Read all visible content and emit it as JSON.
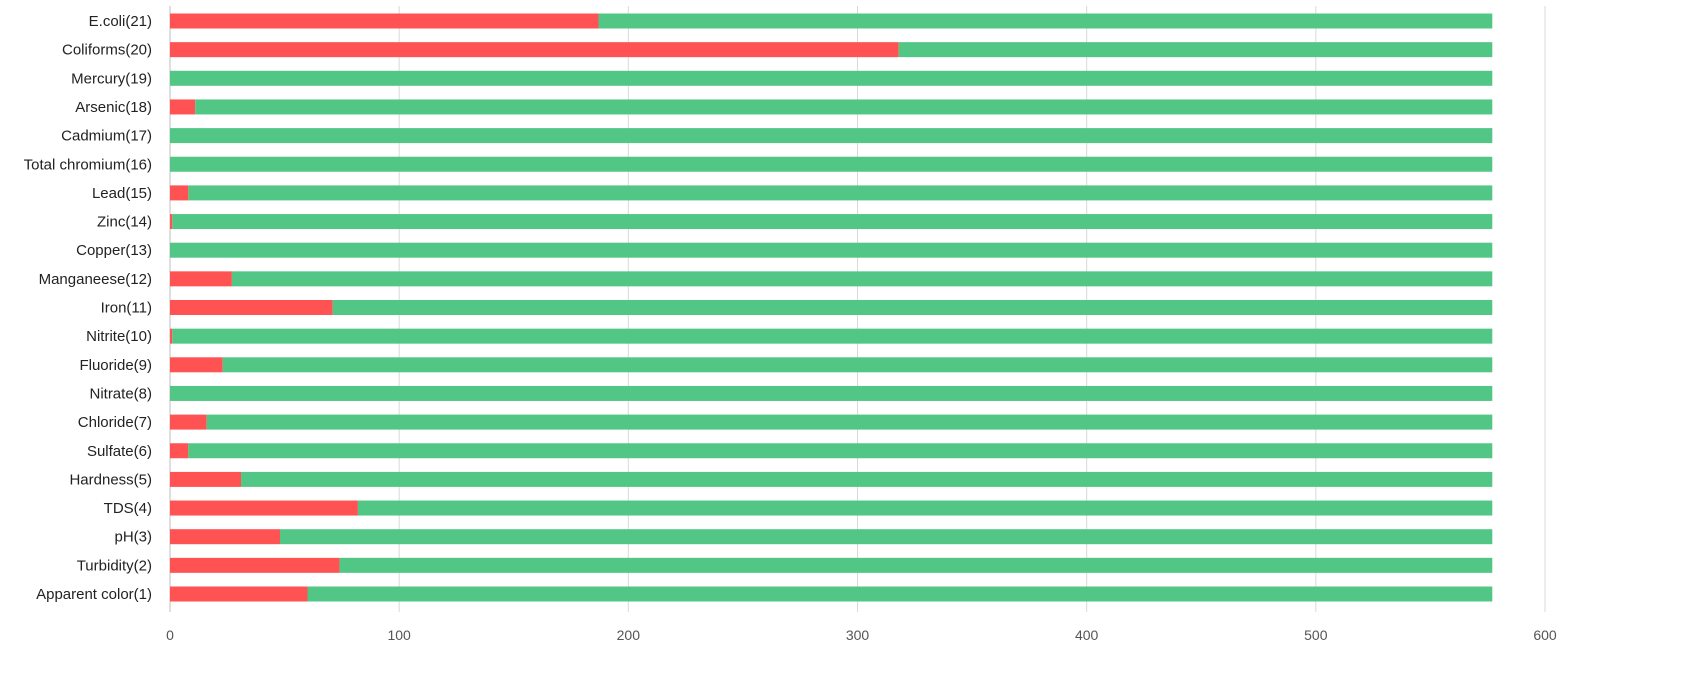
{
  "chart_data": {
    "type": "bar",
    "orientation": "horizontal",
    "stacked": true,
    "categories": [
      "E.coli(21)",
      "Coliforms(20)",
      "Mercury(19)",
      "Arsenic(18)",
      "Cadmium(17)",
      "Total chromium(16)",
      "Lead(15)",
      "Zinc(14)",
      "Copper(13)",
      "Manganeese(12)",
      "Iron(11)",
      "Nitrite(10)",
      "Fluoride(9)",
      "Nitrate(8)",
      "Chloride(7)",
      "Sulfate(6)",
      "Hardness(5)",
      "TDS(4)",
      "pH(3)",
      "Turbidity(2)",
      "Apparent color(1)"
    ],
    "series": [
      {
        "color": "#ff5252",
        "values": [
          187,
          318,
          0,
          11,
          0,
          0,
          8,
          1,
          0,
          27,
          71,
          1,
          23,
          0,
          16,
          8,
          31,
          82,
          48,
          74,
          60
        ]
      },
      {
        "color": "#52c785",
        "values": [
          390,
          259,
          577,
          566,
          577,
          577,
          569,
          576,
          577,
          550,
          506,
          576,
          554,
          577,
          561,
          569,
          546,
          495,
          529,
          503,
          517
        ]
      }
    ],
    "xlim": [
      0,
      600
    ],
    "x_ticks": [
      "0",
      "100",
      "200",
      "300",
      "400",
      "500",
      "600"
    ],
    "grid": true,
    "legend": "none"
  }
}
